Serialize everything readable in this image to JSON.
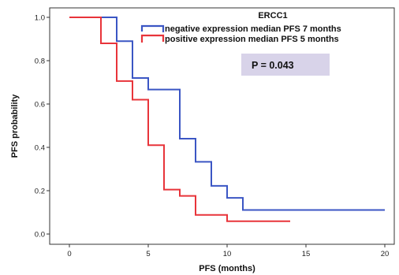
{
  "chart_data": {
    "type": "line",
    "step": true,
    "xlabel": "PFS (months)",
    "ylabel": "PFS probability",
    "xlim": [
      0,
      20
    ],
    "ylim": [
      0,
      1.0
    ],
    "x_ticks": [
      "0",
      "5",
      "10",
      "15",
      "20"
    ],
    "x_tick_values": [
      0,
      5,
      10,
      15,
      20
    ],
    "y_ticks": [
      "0.0",
      "0.2",
      "0.4",
      "0.6",
      "0.8",
      "1.0"
    ],
    "y_tick_values": [
      0,
      0.2,
      0.4,
      0.6,
      0.8,
      1.0
    ],
    "grid": false,
    "legend_title": "ERCC1",
    "legend_position": "top-right",
    "annotation": "P = 0.043",
    "annotation_bg": "#d8d3e9",
    "series": [
      {
        "name": "negative expression median PFS 7 months",
        "color": "#3b56c4",
        "points": [
          [
            0,
            1.0
          ],
          [
            3,
            1.0
          ],
          [
            3,
            0.89
          ],
          [
            4,
            0.89
          ],
          [
            4,
            0.72
          ],
          [
            5,
            0.72
          ],
          [
            5,
            0.667
          ],
          [
            7,
            0.667
          ],
          [
            7,
            0.44
          ],
          [
            8,
            0.44
          ],
          [
            8,
            0.333
          ],
          [
            9,
            0.333
          ],
          [
            9,
            0.222
          ],
          [
            10,
            0.222
          ],
          [
            10,
            0.167
          ],
          [
            11,
            0.167
          ],
          [
            11,
            0.111
          ],
          [
            20,
            0.111
          ]
        ]
      },
      {
        "name": "positive expression median PFS 5 months",
        "color": "#e8343a",
        "points": [
          [
            0,
            1.0
          ],
          [
            2,
            1.0
          ],
          [
            2,
            0.88
          ],
          [
            3,
            0.88
          ],
          [
            3,
            0.706
          ],
          [
            4,
            0.706
          ],
          [
            4,
            0.62
          ],
          [
            5,
            0.62
          ],
          [
            5,
            0.41
          ],
          [
            6,
            0.41
          ],
          [
            6,
            0.205
          ],
          [
            7,
            0.205
          ],
          [
            7,
            0.176
          ],
          [
            8,
            0.176
          ],
          [
            8,
            0.088
          ],
          [
            10,
            0.088
          ],
          [
            10,
            0.059
          ],
          [
            14,
            0.059
          ]
        ]
      }
    ]
  }
}
